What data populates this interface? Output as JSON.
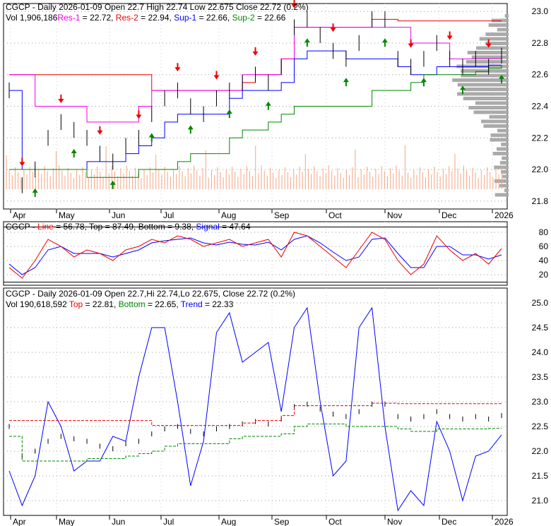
{
  "chart_data": [
    {
      "type": "line",
      "title": "CGCP - Daily 2026-01-09 Open 22.7  High 22.74  Low 22.675  Close 22.72 (0.2%)",
      "legend": {
        "vol": "Vol 1,906,186",
        "res1": "Res-1",
        "res1_val": " = 22.72, ",
        "res2": "Res-2",
        "res2_val": " = 22.94, ",
        "sup1": "Sup-1",
        "sup1_val": " = 22.66, ",
        "sup2": "Sup-2",
        "sup2_val": " = 22.66"
      },
      "yticks": [
        "23.0",
        "22.8",
        "22.6",
        "22.4",
        "22.2",
        "22.0",
        "21.8"
      ],
      "ylim": [
        21.75,
        23.05
      ],
      "xticks": [
        "Apr",
        "May",
        "Jun",
        "Jul",
        "Aug",
        "Sep",
        "Oct",
        "Nov",
        "Dec",
        "2026"
      ],
      "close": [
        22.5,
        21.9,
        22.0,
        22.2,
        22.3,
        22.25,
        22.2,
        22.1,
        22.05,
        22.15,
        22.2,
        22.35,
        22.45,
        22.5,
        22.4,
        22.35,
        22.45,
        22.5,
        22.55,
        22.6,
        22.55,
        22.65,
        22.9,
        22.95,
        22.85,
        22.75,
        22.7,
        22.8,
        22.95,
        22.95,
        22.7,
        22.65,
        22.7,
        22.8,
        22.7,
        22.65,
        22.7,
        22.65,
        22.72
      ],
      "res1": [
        22.6,
        22.6,
        22.4,
        22.4,
        22.4,
        22.4,
        22.3,
        22.3,
        22.3,
        22.3,
        22.4,
        22.5,
        22.5,
        22.5,
        22.5,
        22.5,
        22.5,
        22.5,
        22.6,
        22.6,
        22.6,
        22.7,
        22.9,
        22.9,
        22.9,
        22.9,
        22.9,
        22.9,
        22.9,
        22.9,
        22.9,
        22.8,
        22.8,
        22.8,
        22.7,
        22.7,
        22.7,
        22.7,
        22.72
      ],
      "res2": [
        22.6,
        22.6,
        22.6,
        22.6,
        22.6,
        22.6,
        22.6,
        22.6,
        22.6,
        22.6,
        22.6,
        22.5,
        22.5,
        22.5,
        22.5,
        22.5,
        22.5,
        22.5,
        22.55,
        22.6,
        22.6,
        22.7,
        22.9,
        22.9,
        22.9,
        22.9,
        22.9,
        22.9,
        22.95,
        22.95,
        22.94,
        22.94,
        22.94,
        22.94,
        22.94,
        22.94,
        22.94,
        22.94,
        22.94
      ],
      "sup1": [
        22.5,
        22.0,
        22.0,
        22.0,
        22.0,
        22.0,
        22.05,
        22.05,
        22.05,
        22.1,
        22.15,
        22.2,
        22.3,
        22.35,
        22.35,
        22.35,
        22.35,
        22.45,
        22.5,
        22.5,
        22.5,
        22.55,
        22.7,
        22.75,
        22.75,
        22.75,
        22.7,
        22.7,
        22.7,
        22.7,
        22.65,
        22.6,
        22.6,
        22.65,
        22.65,
        22.65,
        22.65,
        22.66,
        22.66
      ],
      "sup2": [
        22.0,
        22.0,
        22.0,
        22.0,
        22.0,
        22.0,
        21.95,
        21.95,
        21.95,
        21.95,
        22.0,
        22.0,
        22.0,
        22.05,
        22.1,
        22.1,
        22.1,
        22.2,
        22.25,
        22.25,
        22.3,
        22.35,
        22.4,
        22.4,
        22.4,
        22.4,
        22.4,
        22.4,
        22.5,
        22.5,
        22.5,
        22.55,
        22.6,
        22.6,
        22.6,
        22.6,
        22.62,
        22.64,
        22.66
      ]
    },
    {
      "type": "line",
      "legend": {
        "prefix": "CGCP - ",
        "line": "Line",
        "line_val": " = 56.78, ",
        "top": "Top = 87.49, ",
        "bottom": "Bottom = 9.38, ",
        "signal": "Signal",
        "signal_val": " = 47.64"
      },
      "yticks": [
        "80",
        "60",
        "40",
        "20"
      ],
      "ylim": [
        5,
        95
      ],
      "line": [
        30,
        15,
        40,
        70,
        60,
        45,
        55,
        50,
        40,
        55,
        60,
        70,
        65,
        75,
        70,
        60,
        65,
        70,
        60,
        65,
        70,
        45,
        80,
        75,
        60,
        45,
        30,
        55,
        80,
        70,
        40,
        20,
        35,
        75,
        55,
        40,
        50,
        35,
        57
      ],
      "signal": [
        35,
        20,
        30,
        55,
        60,
        50,
        50,
        50,
        45,
        50,
        55,
        65,
        68,
        70,
        72,
        65,
        62,
        66,
        63,
        62,
        66,
        55,
        70,
        75,
        65,
        52,
        40,
        45,
        70,
        72,
        50,
        30,
        30,
        60,
        60,
        48,
        48,
        42,
        48
      ]
    },
    {
      "type": "line",
      "title": "CGCP - Daily 2026-01-09 Open 22.7,Hi 22.74,Lo 22.675, Close 22.72 (0.2%)",
      "legend": {
        "vol": "Vol 190,618,592 ",
        "top": "Top",
        "top_val": " = 22.81, ",
        "bottom": "Bottom",
        "bottom_val": " = 22.65, ",
        "trend": "Trend",
        "trend_val": " = 22.33"
      },
      "yticks": [
        "25.0",
        "24.5",
        "24.0",
        "23.5",
        "23.0",
        "22.5",
        "22.0",
        "21.5",
        "21.0"
      ],
      "ylim": [
        20.7,
        25.3
      ],
      "trend": [
        21.6,
        20.9,
        21.5,
        23.0,
        22.5,
        21.6,
        21.8,
        21.8,
        22.3,
        22.2,
        23.5,
        24.5,
        24.5,
        23.0,
        21.3,
        22.2,
        24.4,
        24.8,
        23.8,
        24.0,
        24.2,
        22.8,
        24.5,
        24.9,
        23.0,
        21.5,
        21.8,
        24.5,
        24.9,
        22.5,
        20.8,
        21.2,
        20.9,
        22.6,
        22.0,
        21.0,
        21.9,
        22.0,
        22.33
      ]
    }
  ]
}
